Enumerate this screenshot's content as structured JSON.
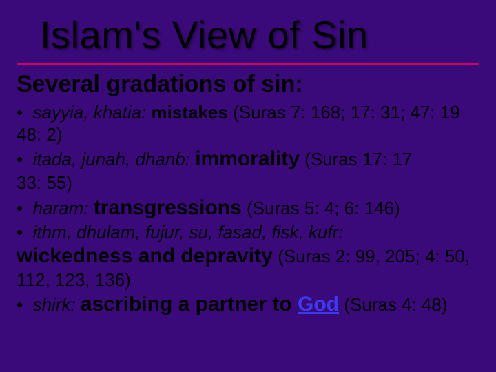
{
  "colors": {
    "background": "#3a0a7a",
    "rule": "#cc0066",
    "text": "#000000",
    "link": "#3a3af0"
  },
  "typography": {
    "title_fontsize": 56,
    "subtitle_fontsize": 34,
    "body_fontsize": 26,
    "bold_lg_fontsize": 30,
    "font_family": "Arial"
  },
  "title": "Islam's View of Sin",
  "subtitle": "Several gradations of sin:",
  "bullets": [
    {
      "terms": "sayyia, khatia:",
      "keyword": "mistakes",
      "refs": "(Suras 7: 168; 17: 31; 47: 19",
      "cont": "48: 2)"
    },
    {
      "terms": "itada, junah, dhanb:",
      "keyword": "immorality",
      "refs": "(Suras 17: 17",
      "cont": "33: 55)"
    },
    {
      "terms": "haram:",
      "keyword": "transgressions",
      "refs": "(Suras 5: 4; 6: 146)",
      "cont": ""
    },
    {
      "terms": "ithm, dhulam, fujur, su, fasad, fisk, kufr:",
      "keyword": "",
      "refs": "",
      "cont": ""
    }
  ],
  "wicked_line": {
    "bold": "wickedness and depravity",
    "refs": "(Suras 2: 99, 205; 4: 50,",
    "cont": "112, 123, 136)"
  },
  "shirk": {
    "term": "shirk:",
    "phrase_pre": "ascribing a partner to ",
    "link": "God",
    "refs": "(Suras 4: 48)"
  },
  "bullet_char": "•"
}
